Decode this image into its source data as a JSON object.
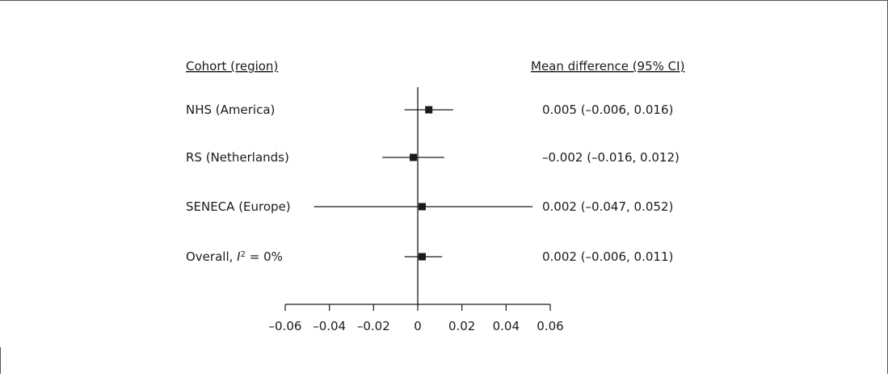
{
  "chart_data": {
    "type": "forest",
    "headers": {
      "label_column": "Cohort (region)",
      "estimate_column": "Mean difference (95% CI)"
    },
    "rows": [
      {
        "label": "NHS (America)",
        "estimate": 0.005,
        "ci_low": -0.006,
        "ci_high": 0.016,
        "ci_text": "0.005 (–0.006, 0.016)"
      },
      {
        "label": "RS (Netherlands)",
        "estimate": -0.002,
        "ci_low": -0.016,
        "ci_high": 0.012,
        "ci_text": "–0.002 (–0.016, 0.012)"
      },
      {
        "label": "SENECA (Europe)",
        "estimate": 0.002,
        "ci_low": -0.047,
        "ci_high": 0.052,
        "ci_text": "0.002 (–0.047, 0.052)"
      },
      {
        "label": "Overall, I2 = 0%",
        "label_parts": {
          "prefix": "Overall, ",
          "italic": "I",
          "sup": "2",
          "suffix": " = 0%"
        },
        "estimate": 0.002,
        "ci_low": -0.006,
        "ci_high": 0.011,
        "ci_text": "0.002 (–0.006, 0.011)"
      }
    ],
    "xlim": [
      -0.06,
      0.06
    ],
    "xticks": [
      -0.06,
      -0.04,
      -0.02,
      0,
      0.02,
      0.04,
      0.06
    ],
    "xtick_labels": [
      "–0.06",
      "–0.04",
      "–0.02",
      "0",
      "0.02",
      "0.04",
      "0.06"
    ],
    "reference_line": 0,
    "colors": {
      "ink": "#1a1a1a",
      "frame": "#555555"
    }
  }
}
